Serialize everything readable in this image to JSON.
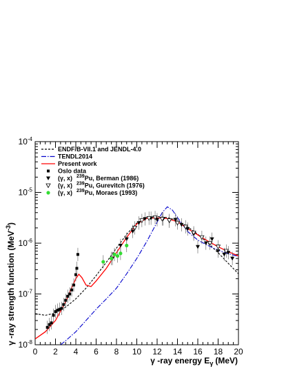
{
  "chart_data": {
    "type": "scatter",
    "title": "",
    "xlabel": "γ -ray energy E",
    "xlabel_sub": "γ",
    "xlabel_unit": "(MeV)",
    "ylabel": "γ -ray strength function (MeV",
    "ylabel_sup": "-3",
    "ylabel_end": ")",
    "xlim": [
      0,
      20
    ],
    "ylim": [
      1e-08,
      0.0001
    ],
    "yscale": "log",
    "grid": false,
    "legend_position": "top-left",
    "x_ticks": [
      "0",
      "2",
      "4",
      "6",
      "8",
      "10",
      "12",
      "14",
      "16",
      "18",
      "20"
    ],
    "y_ticks": [
      {
        "base": "10",
        "exp": "-8"
      },
      {
        "base": "10",
        "exp": "-7"
      },
      {
        "base": "10",
        "exp": "-6"
      },
      {
        "base": "10",
        "exp": "-5"
      },
      {
        "base": "10",
        "exp": "-4"
      }
    ],
    "legend": [
      {
        "kind": "line",
        "style": "dashed",
        "color": "#000000",
        "text": "ENDF/B-VII.1 and JENDL-4.0"
      },
      {
        "kind": "line",
        "style": "dashdot",
        "color": "#0000cc",
        "text": "TENDL2014"
      },
      {
        "kind": "line",
        "style": "solid",
        "color": "#ff0000",
        "text": "Present work"
      },
      {
        "kind": "marker",
        "marker": "square",
        "color": "#000000",
        "text": "Oslo data"
      },
      {
        "kind": "marker",
        "marker": "triangle-down-filled",
        "color": "#000000",
        "pre": "(γ, x)",
        "sup": "239",
        "text": "Pu, Berman (1986)"
      },
      {
        "kind": "marker",
        "marker": "triangle-down-open",
        "color": "#000000",
        "pre": "(γ, x)",
        "sup": "239",
        "text": "Pu, Gurevitch (1976)"
      },
      {
        "kind": "marker",
        "marker": "circle",
        "color": "#33dd33",
        "pre": "(γ, x)",
        "sup": "239",
        "text": "Pu, Moraes (1993)"
      }
    ],
    "series": [
      {
        "name": "ENDF/B-VII.1 and JENDL-4.0",
        "style": "dashed",
        "color": "#000000",
        "points": [
          [
            0,
            4.1e-08
          ],
          [
            1,
            3.8e-08
          ],
          [
            2,
            4.2e-08
          ],
          [
            3,
            5.5e-08
          ],
          [
            4,
            8e-08
          ],
          [
            5,
            1.3e-07
          ],
          [
            6,
            2.3e-07
          ],
          [
            7,
            4.2e-07
          ],
          [
            8,
            8e-07
          ],
          [
            9,
            1.5e-06
          ],
          [
            10,
            2.5e-06
          ],
          [
            11,
            3.2e-06
          ],
          [
            12,
            3.35e-06
          ],
          [
            13,
            3.2e-06
          ],
          [
            14,
            2.8e-06
          ],
          [
            15,
            2.1e-06
          ],
          [
            16,
            1.5e-06
          ],
          [
            17,
            1e-06
          ],
          [
            18,
            6.5e-07
          ],
          [
            19,
            4e-07
          ],
          [
            20,
            2.5e-07
          ]
        ]
      },
      {
        "name": "TENDL2014",
        "style": "dashdot",
        "color": "#0000cc",
        "points": [
          [
            2.5,
            1e-08
          ],
          [
            3,
            1.2e-08
          ],
          [
            4,
            1.8e-08
          ],
          [
            5,
            3e-08
          ],
          [
            6,
            5e-08
          ],
          [
            7,
            8e-08
          ],
          [
            8,
            1.3e-07
          ],
          [
            9,
            2.5e-07
          ],
          [
            10,
            5e-07
          ],
          [
            11,
            1.1e-06
          ],
          [
            12,
            2.6e-06
          ],
          [
            12.5,
            4e-06
          ],
          [
            13,
            5.2e-06
          ],
          [
            13.5,
            4.5e-06
          ],
          [
            14,
            3.2e-06
          ],
          [
            15,
            1.7e-06
          ],
          [
            16,
            1.15e-06
          ],
          [
            17,
            9e-07
          ],
          [
            18,
            7.3e-07
          ],
          [
            19,
            6.2e-07
          ],
          [
            20,
            5.5e-07
          ]
        ]
      },
      {
        "name": "Present work",
        "style": "solid",
        "color": "#ff0000",
        "points": [
          [
            0,
            1.3e-08
          ],
          [
            1,
            1.8e-08
          ],
          [
            2,
            3e-08
          ],
          [
            3,
            7e-08
          ],
          [
            3.5,
            1.2e-07
          ],
          [
            4,
            2e-07
          ],
          [
            4.3,
            2.45e-07
          ],
          [
            4.6,
            2.1e-07
          ],
          [
            5,
            1.5e-07
          ],
          [
            5.5,
            1.4e-07
          ],
          [
            6,
            1.8e-07
          ],
          [
            7,
            3.2e-07
          ],
          [
            8,
            6.5e-07
          ],
          [
            9,
            1.3e-06
          ],
          [
            10,
            2.4e-06
          ],
          [
            11,
            3.1e-06
          ],
          [
            12,
            3.15e-06
          ],
          [
            13,
            3.05e-06
          ],
          [
            14,
            2.65e-06
          ],
          [
            15,
            1.95e-06
          ],
          [
            16,
            1.45e-06
          ],
          [
            17,
            1.1e-06
          ],
          [
            18,
            8.5e-07
          ],
          [
            19,
            6.8e-07
          ],
          [
            20,
            5.6e-07
          ]
        ]
      },
      {
        "name": "Oslo data",
        "marker": "square",
        "color": "#000000",
        "points": [
          [
            1.2,
            2.2e-08
          ],
          [
            1.4,
            2.5e-08
          ],
          [
            1.6,
            2.7e-08
          ],
          [
            1.8,
            3.8e-08
          ],
          [
            2.0,
            4.5e-08
          ],
          [
            2.2,
            4.8e-08
          ],
          [
            2.4,
            5e-08
          ],
          [
            2.6,
            5.2e-08
          ],
          [
            2.8,
            6.2e-08
          ],
          [
            3.0,
            7.5e-08
          ],
          [
            3.2,
            9e-08
          ],
          [
            3.4,
            1e-07
          ],
          [
            3.6,
            1.2e-07
          ],
          [
            3.8,
            1.5e-07
          ],
          [
            4.0,
            2.4e-07
          ],
          [
            4.1,
            3.2e-07
          ],
          [
            4.2,
            6e-07
          ]
        ]
      },
      {
        "name": "(γ, x) 239Pu, Berman (1986)",
        "marker": "triangle-down-filled",
        "color": "#000000",
        "points": [
          [
            7.6,
            5e-07
          ],
          [
            8.4,
            9e-07
          ],
          [
            9.0,
            1.2e-06
          ],
          [
            9.6,
            1.7e-06
          ],
          [
            10.2,
            2.5e-06
          ],
          [
            10.8,
            3e-06
          ],
          [
            11.4,
            3.1e-06
          ],
          [
            12.0,
            2.9e-06
          ],
          [
            12.6,
            3e-06
          ],
          [
            13.2,
            2.7e-06
          ],
          [
            13.8,
            2.9e-06
          ],
          [
            14.4,
            2.3e-06
          ],
          [
            15.0,
            1.9e-06
          ],
          [
            15.6,
            1.5e-06
          ],
          [
            16.0,
            8.5e-07
          ],
          [
            16.8,
            1e-06
          ],
          [
            17.4,
            1.2e-06
          ],
          [
            18.0,
            7e-07
          ],
          [
            18.6,
            6e-07
          ],
          [
            19.0,
            6.5e-07
          ],
          [
            19.4,
            5e-07
          ]
        ]
      },
      {
        "name": "(γ, x) 239Pu, Gurevitch (1976)",
        "marker": "triangle-down-open",
        "color": "#000000",
        "points": [
          [
            9.8,
            2e-06
          ],
          [
            10.5,
            2.8e-06
          ],
          [
            11.2,
            3.1e-06
          ],
          [
            11.8,
            3.2e-06
          ],
          [
            12.5,
            3e-06
          ],
          [
            13.2,
            2.8e-06
          ],
          [
            14.0,
            2.5e-06
          ],
          [
            14.8,
            2.1e-06
          ],
          [
            15.6,
            1.6e-06
          ],
          [
            16.4,
            1.3e-06
          ],
          [
            17.2,
            1e-06
          ],
          [
            18.0,
            8.5e-07
          ],
          [
            18.8,
            7e-07
          ]
        ]
      },
      {
        "name": "(γ, x) 239Pu, Moraes (1993)",
        "marker": "circle",
        "color": "#33dd33",
        "points": [
          [
            6.7,
            4.3e-07
          ],
          [
            7.5,
            5e-07
          ],
          [
            7.8,
            6e-07
          ],
          [
            8.1,
            5.6e-07
          ],
          [
            8.4,
            6.3e-07
          ],
          [
            9.0,
            9e-07
          ]
        ]
      }
    ]
  }
}
